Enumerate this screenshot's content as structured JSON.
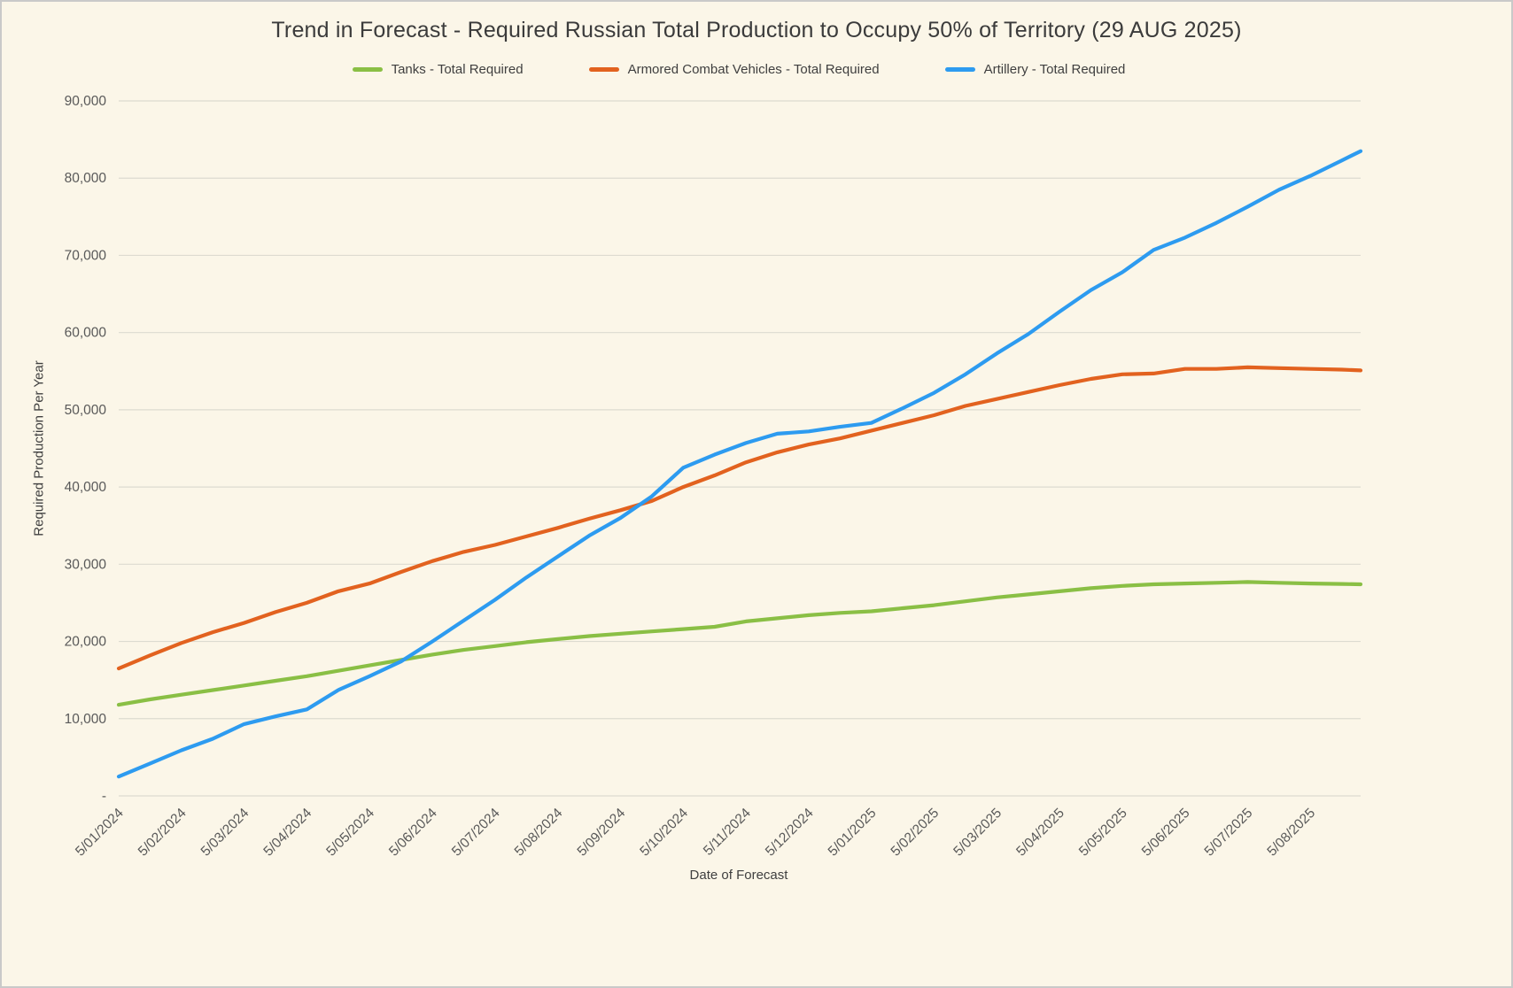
{
  "title": "Trend in Forecast - Required Russian Total Production to Occupy 50% of Territory (29 AUG 2025)",
  "chart_data": {
    "type": "line",
    "title": "Trend in Forecast - Required Russian Total Production to Occupy 50% of Territory (29 AUG 2025)",
    "xlabel": "Date of Forecast",
    "ylabel": "Required Production Per Year",
    "legend_position": "top",
    "grid": "horizontal",
    "background": "#fbf6e8",
    "grid_color": "#dddbd0",
    "text_color": "#595959",
    "ylim": [
      0,
      90000
    ],
    "y_tick_step": 10000,
    "y_tick_labels": [
      "-",
      "10,000",
      "20,000",
      "30,000",
      "40,000",
      "50,000",
      "60,000",
      "70,000",
      "80,000",
      "90,000"
    ],
    "x_tick_labels": [
      "5/01/2024",
      "5/02/2024",
      "5/03/2024",
      "5/04/2024",
      "5/05/2024",
      "5/06/2024",
      "5/07/2024",
      "5/08/2024",
      "5/09/2024",
      "5/10/2024",
      "5/11/2024",
      "5/12/2024",
      "5/01/2025",
      "5/02/2025",
      "5/03/2025",
      "5/04/2025",
      "5/05/2025",
      "5/06/2025",
      "5/07/2025",
      "5/08/2025"
    ],
    "x_unit": "months since 5/01/2024 tick",
    "x_max": 19.8,
    "x": [
      0,
      0.5,
      1,
      1.5,
      2,
      2.5,
      3,
      3.5,
      4,
      4.5,
      5,
      5.5,
      6,
      6.5,
      7,
      7.5,
      8,
      8.5,
      9,
      9.5,
      10,
      10.5,
      11,
      11.5,
      12,
      12.5,
      13,
      13.5,
      14,
      14.5,
      15,
      15.5,
      16,
      16.5,
      17,
      17.5,
      18,
      18.5,
      19,
      19.5,
      19.8
    ],
    "series": [
      {
        "name": "Tanks - Total Required",
        "color": "#8abf45",
        "values": [
          11800,
          12500,
          13100,
          13700,
          14300,
          14900,
          15500,
          16200,
          16900,
          17600,
          18300,
          18900,
          19400,
          19900,
          20300,
          20700,
          21000,
          21300,
          21600,
          21900,
          22600,
          23000,
          23400,
          23700,
          23900,
          24300,
          24700,
          25200,
          25700,
          26100,
          26500,
          26900,
          27200,
          27400,
          27500,
          27600,
          27700,
          27600,
          27500,
          27450,
          27400
        ]
      },
      {
        "name": "Armored Combat Vehicles - Total Required",
        "color": "#e2621f",
        "values": [
          16500,
          18200,
          19800,
          21200,
          22400,
          23800,
          25000,
          26500,
          27500,
          29000,
          30400,
          31600,
          32500,
          33600,
          34700,
          35900,
          37000,
          38200,
          40000,
          41500,
          43200,
          44500,
          45500,
          46300,
          47300,
          48300,
          49300,
          50500,
          51400,
          52300,
          53200,
          54000,
          54600,
          54700,
          55300,
          55300,
          55500,
          55400,
          55300,
          55200,
          55100
        ]
      },
      {
        "name": "Artillery - Total Required",
        "color": "#2d9bf0",
        "values": [
          2500,
          4200,
          5900,
          7400,
          9300,
          10300,
          11200,
          13700,
          15500,
          17400,
          20000,
          22700,
          25400,
          28300,
          31000,
          33700,
          36000,
          38800,
          42500,
          44200,
          45700,
          46900,
          47200,
          47800,
          48300,
          50200,
          52200,
          54600,
          57300,
          59800,
          62700,
          65500,
          67800,
          70700,
          72300,
          74200,
          76300,
          78500,
          80300,
          82300,
          83500
        ]
      }
    ]
  }
}
